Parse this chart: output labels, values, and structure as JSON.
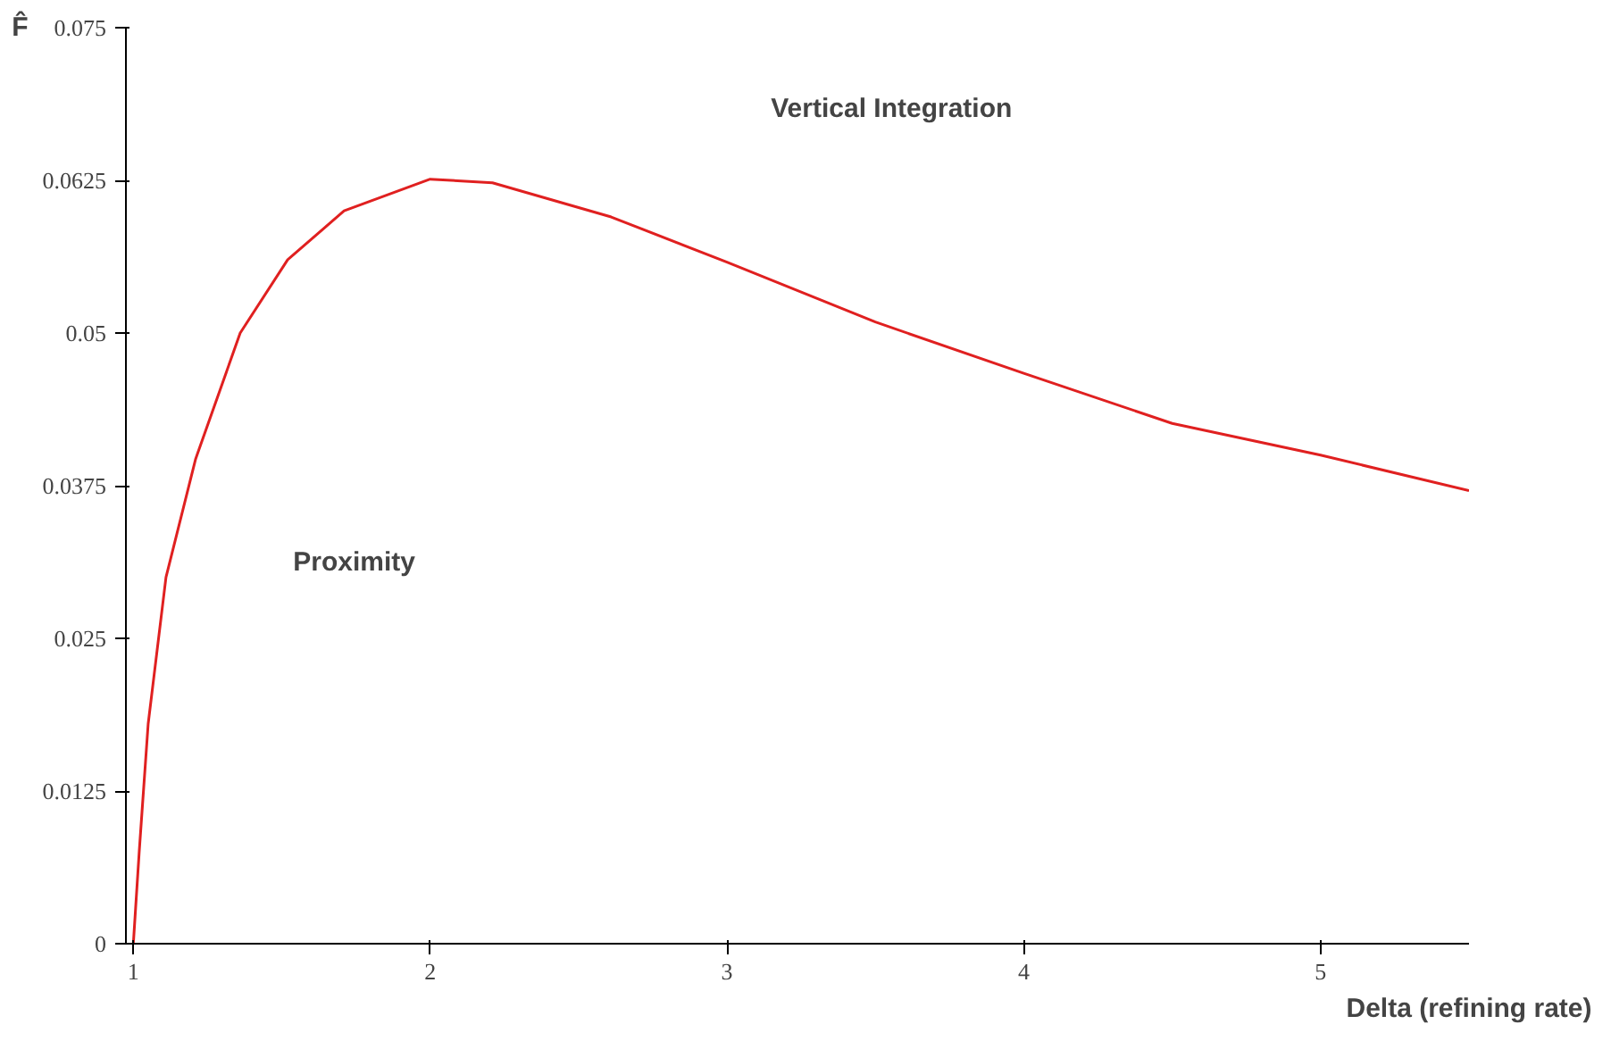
{
  "chart_data": {
    "type": "line",
    "xlabel": "Delta (refining rate)",
    "ylabel": "F̂",
    "x": [
      1.0,
      1.02,
      1.05,
      1.11,
      1.21,
      1.36,
      1.52,
      1.71,
      2.0,
      2.21,
      2.61,
      3.0,
      3.5,
      4.0,
      4.5,
      5.0,
      5.5
    ],
    "series": [
      {
        "color": "#e02020",
        "values": [
          0,
          0.0076,
          0.018,
          0.03,
          0.0397,
          0.05,
          0.056,
          0.06,
          0.0626,
          0.0623,
          0.0595,
          0.0558,
          0.0509,
          0.0467,
          0.0426,
          0.04,
          0.0371
        ]
      }
    ],
    "xlim": [
      0.975,
      5.5
    ],
    "ylim": [
      0,
      0.075
    ],
    "xticks": [
      1,
      2,
      3,
      4,
      5
    ],
    "yticks": [
      0,
      0.0125,
      0.025,
      0.0375,
      0.05,
      0.0625,
      0.075
    ],
    "annotations": [
      "Vertical Integration",
      "Proximity"
    ],
    "grid": false,
    "marker": "none",
    "line_style": "solid"
  }
}
